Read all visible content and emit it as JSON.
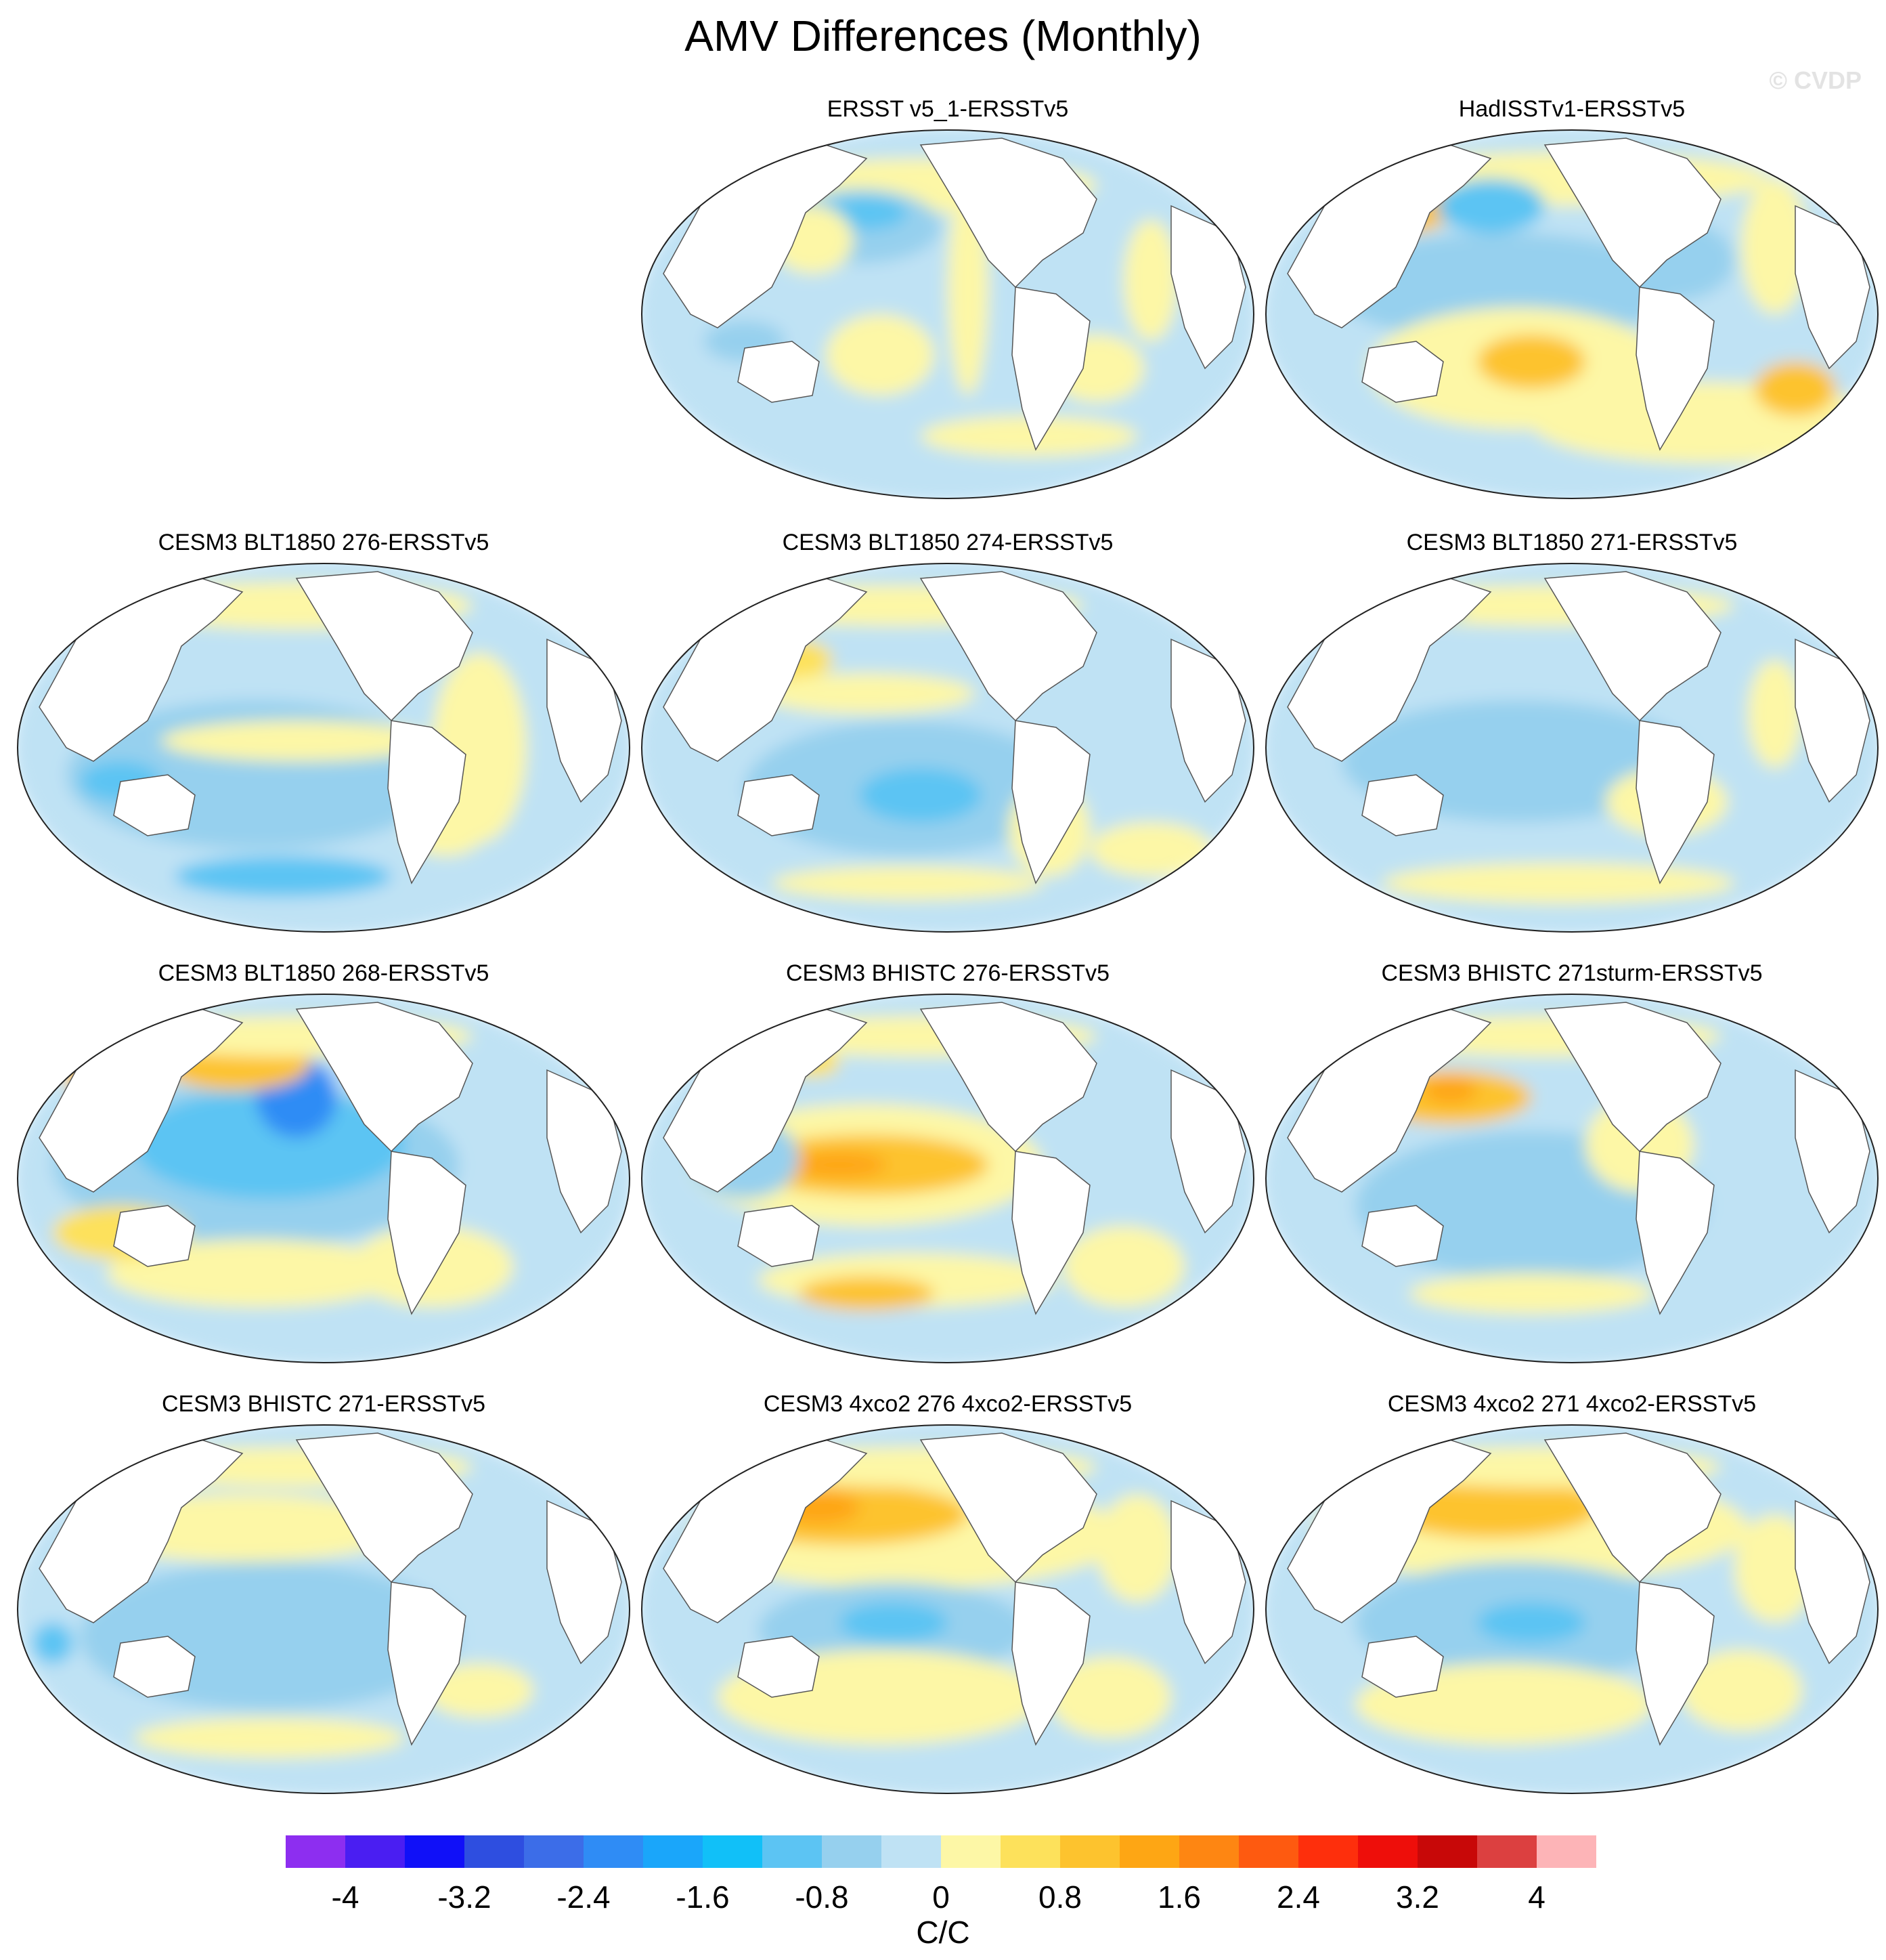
{
  "title": "AMV Differences (Monthly)",
  "watermark": "© CVDP",
  "panels": [
    {
      "title": "ERSST v5_1-ERSSTv5",
      "pattern": "obs1"
    },
    {
      "title": "HadISSTv1-ERSSTv5",
      "pattern": "obs2"
    },
    {
      "title": "CESM3 BLT1850 276-ERSSTv5",
      "pattern": "m1"
    },
    {
      "title": "CESM3 BLT1850 274-ERSSTv5",
      "pattern": "m2"
    },
    {
      "title": "CESM3 BLT1850 271-ERSSTv5",
      "pattern": "m3"
    },
    {
      "title": "CESM3 BLT1850 268-ERSSTv5",
      "pattern": "m4"
    },
    {
      "title": "CESM3 BHISTC 276-ERSSTv5",
      "pattern": "m5"
    },
    {
      "title": "CESM3 BHISTC 271sturm-ERSSTv5",
      "pattern": "m6"
    },
    {
      "title": "CESM3 BHISTC 271-ERSSTv5",
      "pattern": "m7"
    },
    {
      "title": "CESM3 4xco2 276 4xco2-ERSSTv5",
      "pattern": "m8"
    },
    {
      "title": "CESM3 4xco2 271 4xco2-ERSSTv5",
      "pattern": "m9"
    }
  ],
  "colorbar": {
    "colors": [
      "#8d2ef0",
      "#4a1ef2",
      "#1010f8",
      "#2e4ee0",
      "#3c6de8",
      "#2f8cf5",
      "#1aa6fa",
      "#11c0f8",
      "#5cc4f3",
      "#96d0ee",
      "#bfe2f4",
      "#fdf7a6",
      "#fde15b",
      "#fdc32e",
      "#fea614",
      "#fe8612",
      "#fe5a10",
      "#fe2f0c",
      "#ee0e0a",
      "#c80808",
      "#dc4040",
      "#fdb4b7"
    ],
    "labels": [
      "-4",
      "-3.2",
      "-2.4",
      "-1.6",
      "-0.8",
      "0",
      "0.8",
      "1.6",
      "2.4",
      "3.2",
      "4"
    ],
    "units": "C/C"
  }
}
